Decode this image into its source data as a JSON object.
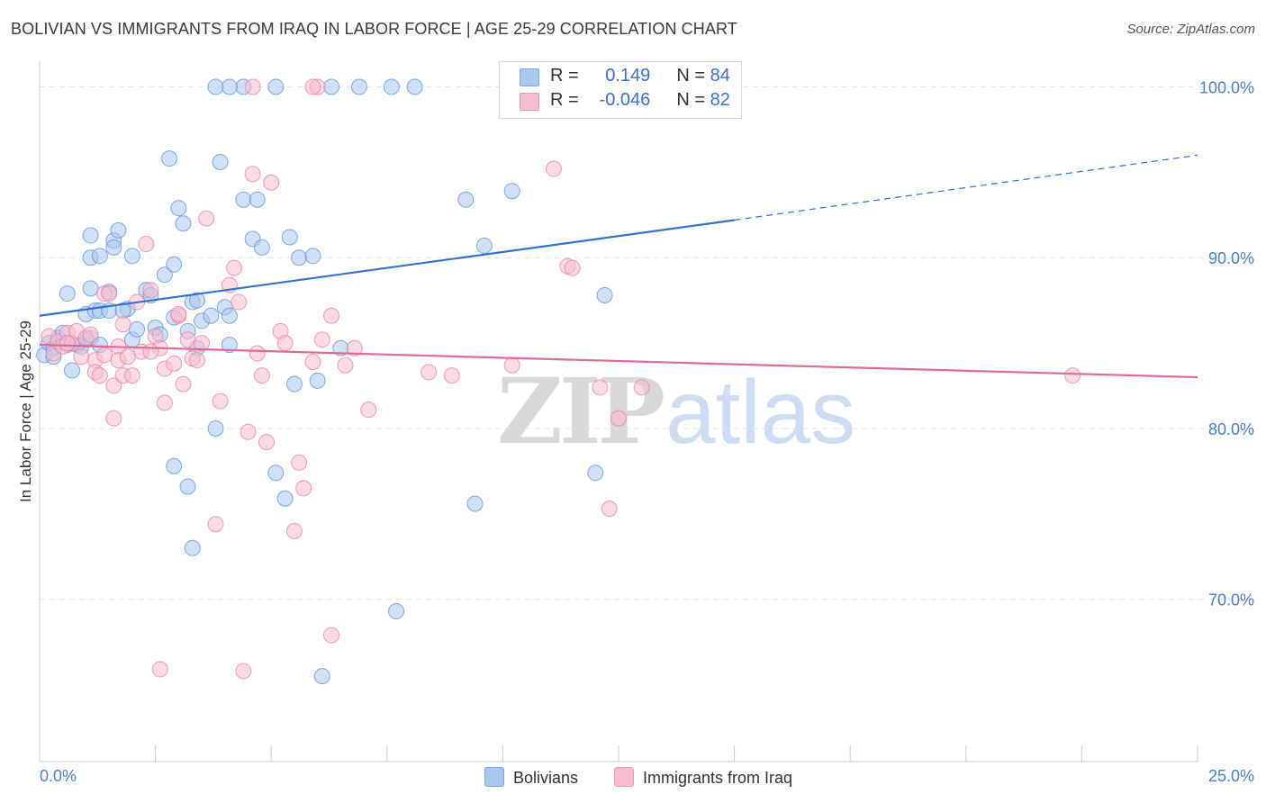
{
  "header": {
    "title": "BOLIVIAN VS IMMIGRANTS FROM IRAQ IN LABOR FORCE | AGE 25-29 CORRELATION CHART",
    "source": "Source: ZipAtlas.com"
  },
  "legend": {
    "rows": [
      {
        "r_label": "R =",
        "r_value": "0.149",
        "n_label": "N =",
        "n_value": "84",
        "color": "#aac7f0"
      },
      {
        "r_label": "R =",
        "r_value": "-0.046",
        "n_label": "N =",
        "n_value": "82",
        "color": "#f7bccd"
      }
    ],
    "bottom": [
      {
        "label": "Bolivians",
        "color": "#aac7f0"
      },
      {
        "label": "Immigrants from Iraq",
        "color": "#f7bccd"
      }
    ]
  },
  "watermark": {
    "zip": "ZIP",
    "atlas": "atlas"
  },
  "chart_data": {
    "type": "scatter",
    "ylabel": "In Labor Force | Age 25-29",
    "xlim": [
      0,
      25
    ],
    "ylim": [
      60.5,
      101.5
    ],
    "x_tick_labels": {
      "min": "0.0%",
      "max": "25.0%"
    },
    "y_ticks": [
      {
        "value": 100,
        "label": "100.0%"
      },
      {
        "value": 90,
        "label": "90.0%"
      },
      {
        "value": 80,
        "label": "80.0%"
      },
      {
        "value": 70,
        "label": "70.0%"
      }
    ],
    "grid": "horizontal dashed",
    "series": [
      {
        "name": "Bolivians",
        "color": "#5b8fd6",
        "fill": "#aac7f0",
        "trend": {
          "x0": 0,
          "y0": 86.6,
          "x1": 15,
          "y1": 92.2,
          "dashed_to_x": 25,
          "dashed_to_y": 96.0,
          "color": "#2f72d0"
        },
        "points": [
          [
            0.1,
            84.3
          ],
          [
            0.2,
            85.0
          ],
          [
            0.3,
            84.7
          ],
          [
            0.3,
            84.2
          ],
          [
            0.4,
            85.3
          ],
          [
            0.5,
            85.6
          ],
          [
            0.6,
            84.9
          ],
          [
            0.7,
            83.4
          ],
          [
            0.8,
            84.9
          ],
          [
            0.9,
            84.8
          ],
          [
            1.0,
            86.7
          ],
          [
            1.0,
            85.2
          ],
          [
            0.6,
            87.9
          ],
          [
            1.1,
            85.3
          ],
          [
            1.2,
            86.9
          ],
          [
            1.3,
            84.9
          ],
          [
            1.1,
            90.0
          ],
          [
            1.1,
            88.2
          ],
          [
            1.1,
            91.3
          ],
          [
            1.3,
            86.9
          ],
          [
            1.3,
            90.1
          ],
          [
            1.5,
            86.9
          ],
          [
            1.5,
            88.0
          ],
          [
            1.6,
            91.0
          ],
          [
            1.6,
            90.6
          ],
          [
            1.7,
            91.6
          ],
          [
            1.9,
            87.0
          ],
          [
            2.0,
            85.2
          ],
          [
            2.1,
            85.8
          ],
          [
            1.8,
            86.9
          ],
          [
            2.0,
            90.1
          ],
          [
            2.3,
            88.1
          ],
          [
            2.4,
            87.8
          ],
          [
            2.5,
            85.9
          ],
          [
            2.6,
            85.5
          ],
          [
            2.7,
            89.0
          ],
          [
            2.8,
            95.8
          ],
          [
            2.9,
            86.5
          ],
          [
            2.9,
            89.6
          ],
          [
            3.0,
            92.9
          ],
          [
            3.1,
            92.0
          ],
          [
            3.2,
            85.7
          ],
          [
            3.3,
            87.4
          ],
          [
            3.4,
            84.7
          ],
          [
            3.4,
            87.5
          ],
          [
            3.5,
            86.3
          ],
          [
            3.7,
            86.6
          ],
          [
            3.8,
            80.0
          ],
          [
            3.2,
            76.6
          ],
          [
            2.9,
            77.8
          ],
          [
            3.3,
            73.0
          ],
          [
            3.9,
            95.6
          ],
          [
            4.0,
            87.1
          ],
          [
            4.1,
            86.6
          ],
          [
            4.4,
            93.4
          ],
          [
            4.6,
            91.1
          ],
          [
            4.7,
            93.4
          ],
          [
            4.8,
            90.6
          ],
          [
            5.1,
            77.4
          ],
          [
            5.3,
            75.9
          ],
          [
            5.4,
            91.2
          ],
          [
            5.5,
            82.6
          ],
          [
            5.6,
            90.0
          ],
          [
            5.9,
            90.1
          ],
          [
            6.0,
            82.8
          ],
          [
            6.5,
            84.7
          ],
          [
            6.9,
            100.0
          ],
          [
            6.1,
            65.5
          ],
          [
            7.7,
            69.3
          ],
          [
            7.6,
            100.0
          ],
          [
            6.3,
            100.0
          ],
          [
            5.1,
            100.0
          ],
          [
            4.4,
            100.0
          ],
          [
            4.1,
            100.0
          ],
          [
            3.8,
            100.0
          ],
          [
            8.1,
            100.0
          ],
          [
            9.2,
            93.4
          ],
          [
            9.4,
            75.6
          ],
          [
            9.6,
            90.7
          ],
          [
            10.2,
            93.9
          ],
          [
            12.0,
            77.4
          ],
          [
            12.2,
            87.8
          ],
          [
            11.8,
            100.0
          ],
          [
            4.1,
            84.9
          ]
        ]
      },
      {
        "name": "Immigrants from Iraq",
        "color": "#e77ea0",
        "fill": "#f7bccd",
        "trend": {
          "x0": 0,
          "y0": 84.9,
          "x1": 25,
          "y1": 83.0,
          "color": "#e0679a"
        },
        "points": [
          [
            0.2,
            85.4
          ],
          [
            0.3,
            84.4
          ],
          [
            0.4,
            85.1
          ],
          [
            0.5,
            84.8
          ],
          [
            0.6,
            85.6
          ],
          [
            0.7,
            85.0
          ],
          [
            0.8,
            85.7
          ],
          [
            0.9,
            84.2
          ],
          [
            1.0,
            85.3
          ],
          [
            1.1,
            85.5
          ],
          [
            1.2,
            84.0
          ],
          [
            1.2,
            83.3
          ],
          [
            1.3,
            83.1
          ],
          [
            1.4,
            87.9
          ],
          [
            1.5,
            87.9
          ],
          [
            1.6,
            82.5
          ],
          [
            1.6,
            80.6
          ],
          [
            1.7,
            84.8
          ],
          [
            1.7,
            84.0
          ],
          [
            1.8,
            83.1
          ],
          [
            1.9,
            84.2
          ],
          [
            2.0,
            83.1
          ],
          [
            1.8,
            86.1
          ],
          [
            2.1,
            87.4
          ],
          [
            2.2,
            84.5
          ],
          [
            2.3,
            90.8
          ],
          [
            2.4,
            88.1
          ],
          [
            2.5,
            85.4
          ],
          [
            2.6,
            84.7
          ],
          [
            2.7,
            81.5
          ],
          [
            2.7,
            83.5
          ],
          [
            2.9,
            83.8
          ],
          [
            3.0,
            86.6
          ],
          [
            3.1,
            82.6
          ],
          [
            3.2,
            85.2
          ],
          [
            3.3,
            84.1
          ],
          [
            3.4,
            84.0
          ],
          [
            3.5,
            85.0
          ],
          [
            3.6,
            92.3
          ],
          [
            3.8,
            74.4
          ],
          [
            3.9,
            81.6
          ],
          [
            4.1,
            88.4
          ],
          [
            4.2,
            89.4
          ],
          [
            4.3,
            87.4
          ],
          [
            4.5,
            79.8
          ],
          [
            4.6,
            94.9
          ],
          [
            4.7,
            84.4
          ],
          [
            4.8,
            83.1
          ],
          [
            4.9,
            79.2
          ],
          [
            5.0,
            94.4
          ],
          [
            5.2,
            85.7
          ],
          [
            5.3,
            85.0
          ],
          [
            5.5,
            74.0
          ],
          [
            5.6,
            78.0
          ],
          [
            5.7,
            76.5
          ],
          [
            5.9,
            83.9
          ],
          [
            6.1,
            85.2
          ],
          [
            6.3,
            86.6
          ],
          [
            6.6,
            83.7
          ],
          [
            6.8,
            84.7
          ],
          [
            7.1,
            81.1
          ],
          [
            6.3,
            67.9
          ],
          [
            2.6,
            65.9
          ],
          [
            4.4,
            65.8
          ],
          [
            4.6,
            100.0
          ],
          [
            6.0,
            100.0
          ],
          [
            5.9,
            100.0
          ],
          [
            8.4,
            83.3
          ],
          [
            8.9,
            83.1
          ],
          [
            10.2,
            83.7
          ],
          [
            11.1,
            95.2
          ],
          [
            11.4,
            89.5
          ],
          [
            11.5,
            89.4
          ],
          [
            12.1,
            82.4
          ],
          [
            12.3,
            75.3
          ],
          [
            12.5,
            80.6
          ],
          [
            13.0,
            82.4
          ],
          [
            22.3,
            83.1
          ],
          [
            0.6,
            85.0
          ],
          [
            1.4,
            84.3
          ],
          [
            2.4,
            84.5
          ],
          [
            3.0,
            86.7
          ]
        ]
      }
    ]
  }
}
